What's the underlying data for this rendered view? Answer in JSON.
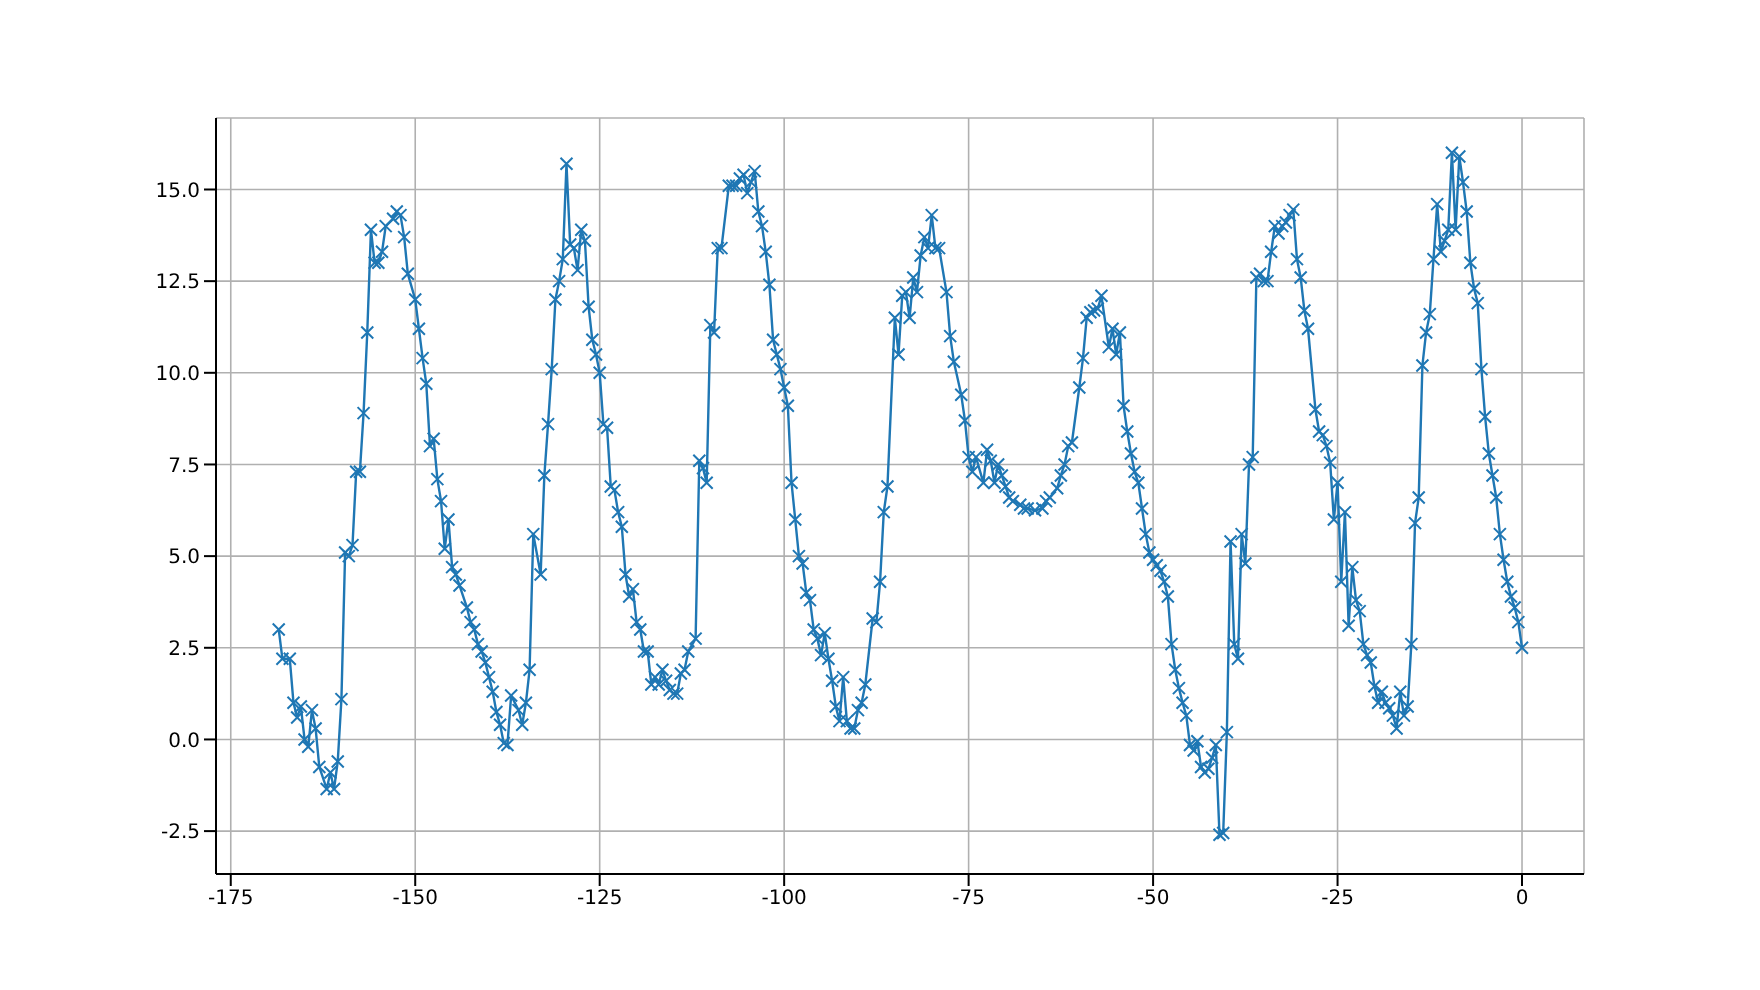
{
  "chart_data": {
    "type": "line",
    "marker": "cross",
    "grid": true,
    "line_style": "solid",
    "xlim": [
      -177,
      8.4
    ],
    "ylim": [
      -3.67,
      16.95
    ],
    "xticks": [
      -175,
      -150,
      -125,
      -100,
      -75,
      -50,
      -25,
      0
    ],
    "yticks": [
      -2.5,
      {
        "value": 0,
        "label": "0.0"
      },
      2.5,
      {
        "value": 5,
        "label": "5.0"
      },
      7.5,
      {
        "value": 10,
        "label": "10.0"
      },
      12.5,
      {
        "value": 15,
        "label": "15.0"
      }
    ],
    "series": [
      {
        "color": "#1f77b4",
        "x": [
          -168.5,
          -168,
          -167,
          -166.5,
          -166,
          -165.5,
          -165,
          -164.5,
          -164,
          -163.5,
          -163,
          -162,
          -161.5,
          -161,
          -160.5,
          -160,
          -159.5,
          -159,
          -158.5,
          -158,
          -157.5,
          -157,
          -156.5,
          -156,
          -155.5,
          -155,
          -154.5,
          -154,
          -153,
          -152.5,
          -152,
          -151.5,
          -151,
          -150,
          -149.5,
          -149,
          -148.5,
          -148,
          -147.5,
          -147,
          -146.5,
          -146,
          -145.5,
          -145,
          -144.5,
          -144,
          -143,
          -142.5,
          -142,
          -141.5,
          -141,
          -140.5,
          -140,
          -139.5,
          -139,
          -138.5,
          -138,
          -137.5,
          -137,
          -136,
          -135.5,
          -135,
          -134.5,
          -134,
          -133,
          -132.5,
          -132,
          -131.5,
          -131,
          -130.5,
          -130,
          -129.5,
          -129,
          -128.5,
          -128,
          -127.5,
          -127,
          -126.5,
          -126,
          -125.5,
          -125,
          -124.5,
          -124,
          -123.5,
          -123,
          -122.5,
          -122,
          -121.5,
          -121,
          -120.5,
          -120,
          -119.5,
          -119,
          -118.5,
          -118,
          -117.5,
          -117,
          -116.5,
          -116,
          -115.5,
          -115,
          -114.5,
          -114,
          -113.5,
          -113,
          -112,
          -111.5,
          -111,
          -110.5,
          -110,
          -109.5,
          -109,
          -108.5,
          -107.5,
          -107,
          -106.5,
          -106,
          -105.5,
          -105,
          -104.5,
          -104,
          -103.5,
          -103,
          -102.5,
          -102,
          -101.5,
          -101,
          -100.5,
          -100,
          -99.5,
          -99,
          -98.5,
          -98,
          -97.5,
          -97,
          -96.5,
          -96,
          -95.5,
          -95,
          -94.5,
          -94,
          -93.5,
          -93,
          -92.5,
          -92,
          -91.5,
          -91,
          -90.5,
          -90,
          -89.5,
          -89,
          -88,
          -87.5,
          -87,
          -86.5,
          -86,
          -85,
          -84.5,
          -84,
          -83.5,
          -83,
          -82.5,
          -82,
          -81.5,
          -81,
          -80.5,
          -80,
          -79.5,
          -79,
          -78,
          -77.5,
          -77,
          -76,
          -75.5,
          -75,
          -74.5,
          -74,
          -73,
          -72.5,
          -72,
          -71.5,
          -71,
          -70.5,
          -70,
          -69.5,
          -69,
          -68,
          -67.5,
          -67,
          -66,
          -65,
          -64.5,
          -64,
          -63,
          -62.5,
          -62,
          -61.5,
          -61,
          -60,
          -59.5,
          -59,
          -58.5,
          -58,
          -57.5,
          -57,
          -56,
          -55.5,
          -55,
          -54.5,
          -54,
          -53.5,
          -53,
          -52.5,
          -52,
          -51.5,
          -51,
          -50.5,
          -50,
          -49.5,
          -49,
          -48.5,
          -48,
          -47.5,
          -47,
          -46.5,
          -46,
          -45.5,
          -45,
          -44.5,
          -44,
          -43.5,
          -43,
          -42.5,
          -42,
          -41.5,
          -41,
          -40.5,
          -40,
          -39.5,
          -39,
          -38.5,
          -38,
          -37.5,
          -37,
          -36.5,
          -36,
          -35.5,
          -35,
          -34.5,
          -34,
          -33.5,
          -33,
          -32.5,
          -32,
          -31.5,
          -31,
          -30.5,
          -30,
          -29.5,
          -29,
          -28,
          -27.5,
          -27,
          -26.5,
          -26,
          -25.5,
          -25,
          -24.5,
          -24,
          -23.5,
          -23,
          -22.5,
          -22,
          -21.5,
          -21,
          -20.5,
          -20,
          -19.5,
          -19,
          -18.5,
          -18,
          -17.5,
          -17,
          -16.5,
          -16,
          -15.5,
          -15,
          -14.5,
          -14,
          -13.5,
          -13,
          -12.5,
          -12,
          -11.5,
          -11,
          -10.5,
          -10,
          -9.5,
          -9,
          -8.5,
          -8,
          -7.5,
          -7,
          -6.5,
          -6,
          -5.5,
          -5,
          -4.5,
          -4,
          -3.5,
          -3,
          -2.5,
          -2,
          -1.5,
          -1,
          -0.5,
          0
        ],
        "values": [
          3.0,
          2.2,
          2.2,
          1.0,
          0.6,
          0.9,
          0.0,
          -0.2,
          0.8,
          0.3,
          -0.75,
          -1.35,
          -0.9,
          -1.35,
          -0.6,
          1.1,
          5.1,
          5.0,
          5.3,
          7.3,
          7.3,
          8.9,
          11.1,
          13.9,
          13.0,
          13.0,
          13.3,
          14.0,
          14.2,
          14.4,
          14.3,
          13.7,
          12.7,
          12.0,
          11.2,
          10.4,
          9.7,
          8.0,
          8.2,
          7.1,
          6.5,
          5.2,
          6.0,
          4.7,
          4.5,
          4.2,
          3.6,
          3.2,
          3.0,
          2.6,
          2.4,
          2.1,
          1.7,
          1.3,
          0.75,
          0.4,
          -0.1,
          -0.15,
          1.2,
          0.8,
          0.4,
          1.0,
          1.9,
          5.6,
          4.5,
          7.2,
          8.6,
          10.1,
          12.0,
          12.5,
          13.1,
          15.7,
          13.5,
          13.4,
          12.8,
          13.9,
          13.6,
          11.8,
          10.9,
          10.5,
          10.0,
          8.6,
          8.5,
          6.9,
          6.8,
          6.2,
          5.8,
          4.5,
          3.9,
          4.1,
          3.2,
          3.0,
          2.4,
          2.4,
          1.5,
          1.7,
          1.5,
          1.9,
          1.6,
          1.35,
          1.25,
          1.25,
          1.8,
          1.9,
          2.4,
          2.75,
          7.6,
          7.4,
          7.0,
          11.3,
          11.1,
          13.4,
          13.4,
          15.1,
          15.1,
          15.1,
          15.3,
          15.4,
          14.9,
          15.2,
          15.5,
          14.4,
          14.0,
          13.3,
          12.4,
          10.9,
          10.5,
          10.1,
          9.6,
          9.1,
          7.0,
          6.0,
          5.0,
          4.8,
          4.0,
          3.8,
          3.0,
          2.75,
          2.3,
          2.9,
          2.2,
          1.6,
          0.9,
          0.5,
          1.7,
          0.5,
          0.3,
          0.3,
          0.8,
          1.0,
          1.5,
          3.3,
          3.2,
          4.3,
          6.2,
          6.9,
          11.5,
          10.5,
          12.1,
          12.2,
          11.5,
          12.6,
          12.2,
          13.2,
          13.7,
          13.4,
          14.3,
          13.4,
          13.4,
          12.2,
          11.0,
          10.3,
          9.4,
          8.7,
          7.7,
          7.3,
          7.7,
          7.0,
          7.9,
          7.6,
          7.0,
          7.5,
          7.2,
          6.9,
          6.6,
          6.5,
          6.4,
          6.3,
          6.3,
          6.25,
          6.3,
          6.5,
          6.6,
          6.85,
          7.2,
          7.5,
          8.0,
          8.1,
          9.6,
          10.4,
          11.5,
          11.65,
          11.7,
          11.75,
          12.1,
          10.7,
          11.2,
          10.5,
          11.1,
          9.1,
          8.4,
          7.8,
          7.3,
          7.0,
          6.3,
          5.6,
          5.1,
          4.9,
          4.75,
          4.6,
          4.3,
          3.9,
          2.6,
          1.9,
          1.4,
          1.0,
          0.65,
          -0.15,
          -0.3,
          -0.05,
          -0.75,
          -0.9,
          -0.8,
          -0.5,
          -0.15,
          -2.6,
          -2.55,
          0.2,
          5.4,
          2.6,
          2.2,
          5.6,
          4.8,
          7.5,
          7.7,
          12.6,
          12.7,
          12.5,
          12.5,
          13.3,
          14.0,
          13.8,
          14.0,
          14.1,
          14.3,
          14.45,
          13.1,
          12.6,
          11.7,
          11.2,
          9.0,
          8.4,
          8.3,
          8.0,
          7.55,
          6.0,
          7.0,
          4.3,
          6.2,
          3.1,
          4.7,
          3.8,
          3.5,
          2.6,
          2.3,
          2.1,
          1.45,
          1.0,
          1.3,
          1.0,
          0.85,
          0.65,
          0.3,
          1.3,
          0.65,
          0.9,
          2.6,
          5.9,
          6.6,
          10.2,
          11.1,
          11.6,
          13.1,
          14.6,
          13.3,
          13.6,
          13.9,
          16.0,
          13.9,
          15.9,
          15.2,
          14.4,
          13.0,
          12.3,
          11.9,
          10.1,
          8.8,
          7.8,
          7.2,
          6.6,
          5.6,
          4.9,
          4.3,
          3.9,
          3.6,
          3.2,
          2.5
        ]
      }
    ]
  }
}
